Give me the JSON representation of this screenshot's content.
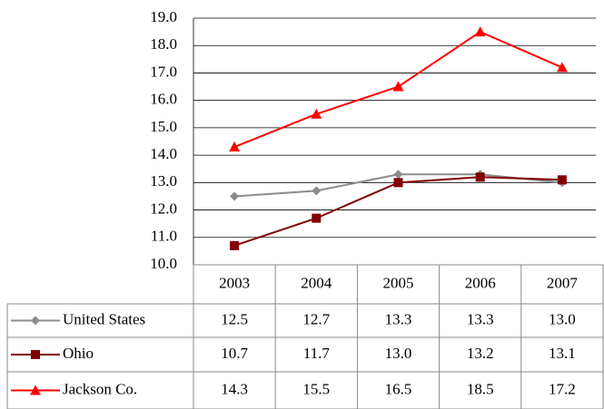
{
  "chart_data": {
    "type": "line",
    "categories": [
      "2003",
      "2004",
      "2005",
      "2006",
      "2007"
    ],
    "series": [
      {
        "name": "United States",
        "color": "#8c8c8c",
        "marker": "diamond",
        "values": [
          12.5,
          12.7,
          13.3,
          13.3,
          13.0
        ],
        "value_labels": [
          "12.5",
          "12.7",
          "13.3",
          "13.3",
          "13.0"
        ]
      },
      {
        "name": "Ohio",
        "color": "#800000",
        "marker": "square",
        "values": [
          10.7,
          11.7,
          13.0,
          13.2,
          13.1
        ],
        "value_labels": [
          "10.7",
          "11.7",
          "13.0",
          "13.2",
          "13.1"
        ]
      },
      {
        "name": "Jackson Co.",
        "color": "#ff0000",
        "marker": "triangle",
        "values": [
          14.3,
          15.5,
          16.5,
          18.5,
          17.2
        ],
        "value_labels": [
          "14.3",
          "15.5",
          "16.5",
          "18.5",
          "17.2"
        ]
      }
    ],
    "ylim": [
      10,
      19
    ],
    "yticks": [
      {
        "value": 10,
        "label": "10.0"
      },
      {
        "value": 11,
        "label": "11.0"
      },
      {
        "value": 12,
        "label": "12.0"
      },
      {
        "value": 13,
        "label": "13.0"
      },
      {
        "value": 14,
        "label": "14.0"
      },
      {
        "value": 15,
        "label": "15.0"
      },
      {
        "value": 16,
        "label": "16.0"
      },
      {
        "value": 17,
        "label": "17.0"
      },
      {
        "value": 18,
        "label": "18.0"
      },
      {
        "value": 19,
        "label": "19.0"
      }
    ],
    "grid": true,
    "data_table": true
  }
}
